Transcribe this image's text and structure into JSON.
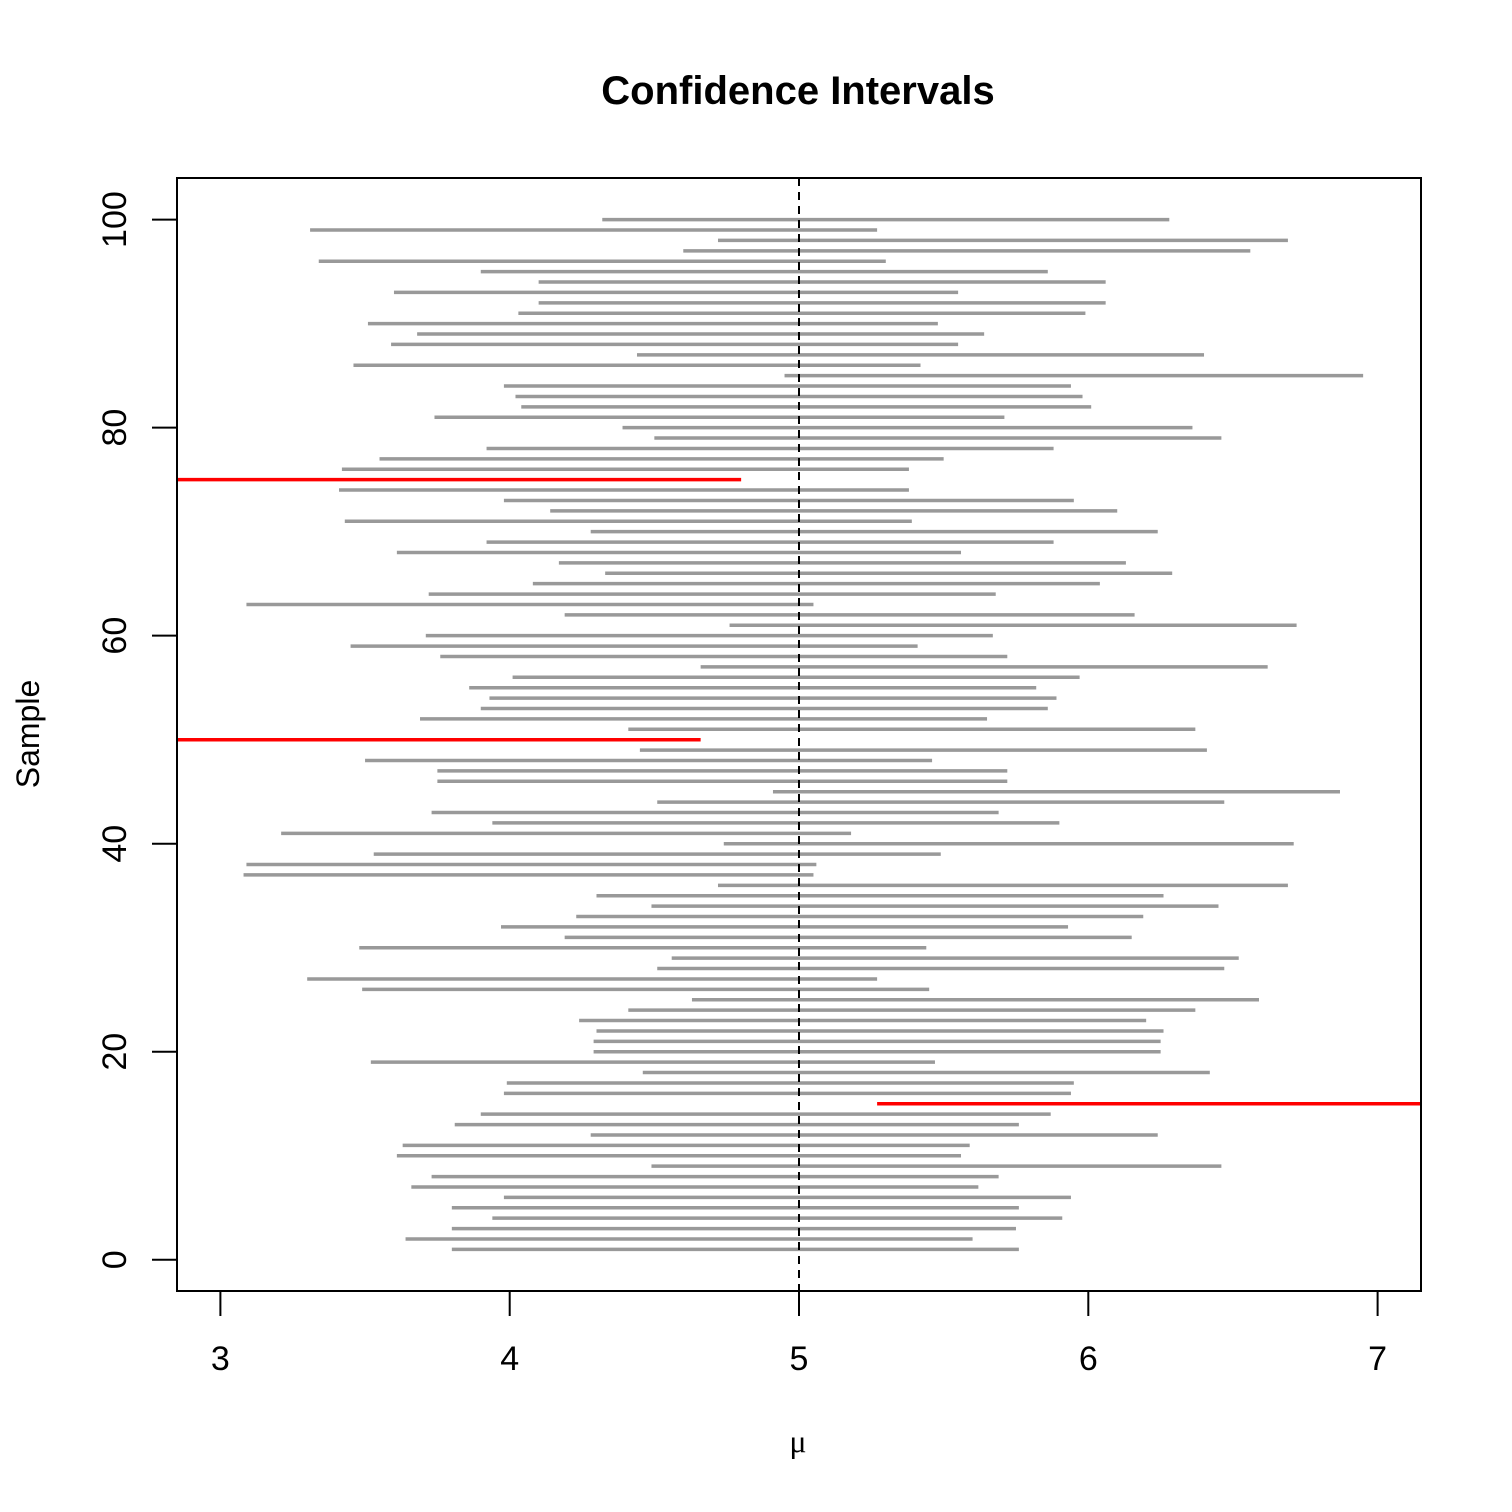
{
  "chart_data": {
    "type": "interval",
    "title": "Confidence Intervals",
    "xlabel": "μ",
    "ylabel": "Sample",
    "xlim": [
      2.85,
      7.15
    ],
    "ylim": [
      -3,
      104
    ],
    "x_ticks": [
      3,
      4,
      5,
      6,
      7
    ],
    "y_ticks": [
      0,
      20,
      40,
      60,
      80,
      100
    ],
    "reference_line": {
      "x": 5,
      "style": "dashed"
    },
    "colors": {
      "covers": "#999999",
      "misses": "#ff0000",
      "reference": "#000000"
    },
    "series": [
      {
        "name": "intervals",
        "samples": [
          1,
          2,
          3,
          4,
          5,
          6,
          7,
          8,
          9,
          10,
          11,
          12,
          13,
          14,
          15,
          16,
          17,
          18,
          19,
          20,
          21,
          22,
          23,
          24,
          25,
          26,
          27,
          28,
          29,
          30,
          31,
          32,
          33,
          34,
          35,
          36,
          37,
          38,
          39,
          40,
          41,
          42,
          43,
          44,
          45,
          46,
          47,
          48,
          49,
          50,
          51,
          52,
          53,
          54,
          55,
          56,
          57,
          58,
          59,
          60,
          61,
          62,
          63,
          64,
          65,
          66,
          67,
          68,
          69,
          70,
          71,
          72,
          73,
          74,
          75,
          76,
          77,
          78,
          79,
          80,
          81,
          82,
          83,
          84,
          85,
          86,
          87,
          88,
          89,
          90,
          91,
          92,
          93,
          94,
          95,
          96,
          97,
          98,
          99,
          100
        ],
        "lower": [
          3.8,
          3.64,
          3.8,
          3.94,
          3.8,
          3.98,
          3.66,
          3.73,
          4.49,
          3.61,
          3.63,
          4.28,
          3.81,
          3.9,
          5.27,
          3.98,
          3.99,
          4.46,
          3.52,
          4.29,
          4.29,
          4.3,
          4.24,
          4.41,
          4.63,
          3.49,
          3.3,
          4.51,
          4.56,
          3.48,
          4.19,
          3.97,
          4.23,
          4.49,
          4.3,
          4.72,
          3.08,
          3.09,
          3.53,
          4.74,
          3.21,
          3.94,
          3.73,
          4.51,
          4.91,
          3.75,
          3.75,
          3.5,
          4.45,
          2.55,
          4.41,
          3.69,
          3.9,
          3.93,
          3.86,
          4.01,
          4.66,
          3.76,
          3.45,
          3.71,
          4.76,
          4.19,
          3.09,
          3.72,
          4.08,
          4.33,
          4.17,
          3.61,
          3.92,
          4.28,
          3.43,
          4.14,
          3.98,
          3.41,
          2.85,
          3.42,
          3.55,
          3.92,
          4.5,
          4.39,
          3.74,
          4.04,
          4.02,
          3.98,
          4.95,
          3.46,
          4.44,
          3.59,
          3.68,
          3.51,
          4.03,
          4.1,
          3.6,
          4.1,
          3.9,
          3.34,
          4.6,
          4.72,
          3.31,
          4.32
        ],
        "upper": [
          5.76,
          5.6,
          5.75,
          5.91,
          5.76,
          5.94,
          5.62,
          5.69,
          6.46,
          5.56,
          5.59,
          6.24,
          5.76,
          5.87,
          7.23,
          5.94,
          5.95,
          6.42,
          5.47,
          6.25,
          6.25,
          6.26,
          6.2,
          6.37,
          6.59,
          5.45,
          5.27,
          6.47,
          6.52,
          5.44,
          6.15,
          5.93,
          6.19,
          6.45,
          6.26,
          6.69,
          5.05,
          5.06,
          5.49,
          6.71,
          5.18,
          5.9,
          5.69,
          6.47,
          6.87,
          5.72,
          5.72,
          5.46,
          6.41,
          4.66,
          6.37,
          5.65,
          5.86,
          5.89,
          5.82,
          5.97,
          6.62,
          5.72,
          5.41,
          5.67,
          6.72,
          6.16,
          5.05,
          5.68,
          6.04,
          6.29,
          6.13,
          5.56,
          5.88,
          6.24,
          5.39,
          6.1,
          5.95,
          5.38,
          4.8,
          5.38,
          5.5,
          5.88,
          6.46,
          6.36,
          5.71,
          6.01,
          5.98,
          5.94,
          6.95,
          5.42,
          6.4,
          5.55,
          5.64,
          5.48,
          5.99,
          6.06,
          5.55,
          6.06,
          5.86,
          5.3,
          6.56,
          6.69,
          5.27,
          6.28
        ]
      }
    ]
  }
}
